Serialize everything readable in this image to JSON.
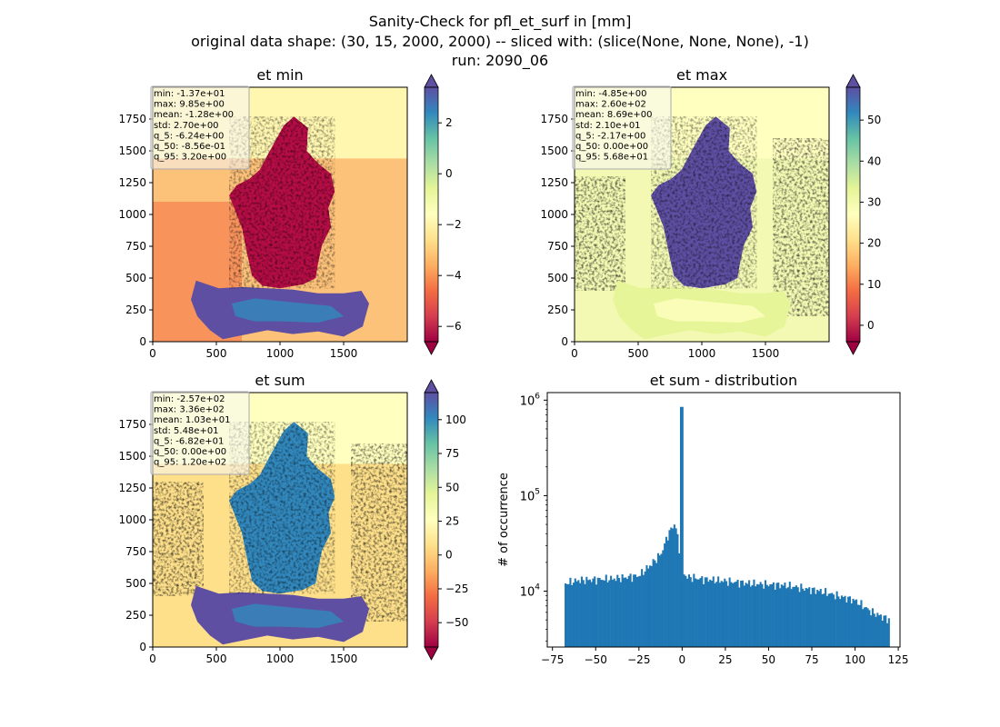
{
  "figure": {
    "suptitle_lines": [
      "Sanity-Check for pfl_et_surf in [mm]",
      "original data shape: (30, 15, 2000, 2000) -- sliced with: (slice(None, None, None), -1)",
      "run: 2090_06"
    ]
  },
  "colors": {
    "spectral": [
      "#9e0142",
      "#d53e4f",
      "#f46d43",
      "#fdae61",
      "#fee08b",
      "#ffffbf",
      "#e6f598",
      "#abdda4",
      "#66c2a5",
      "#3288bd",
      "#5e4fa2"
    ],
    "bar_fill": "#1f77b4"
  },
  "chart_data": [
    {
      "type": "heatmap",
      "title": "et min",
      "xticks": [
        0,
        500,
        1000,
        1500
      ],
      "yticks": [
        0,
        250,
        500,
        750,
        1000,
        1250,
        1500,
        1750
      ],
      "xlim": [
        0,
        2000
      ],
      "ylim": [
        0,
        2000
      ],
      "colorbar": {
        "vmin": -6.6,
        "vmax": 3.4,
        "ticks": [
          -6,
          -4,
          -2,
          0,
          2
        ],
        "extend": "both",
        "colormap": "Spectral"
      },
      "stats": [
        "min: -1.37e+01",
        "max: 9.85e+00",
        "mean: -1.28e+00",
        "std: 2.70e+00",
        "q_5: -6.24e+00",
        "q_50: -8.56e-01",
        "q_95: 3.20e+00"
      ]
    },
    {
      "type": "heatmap",
      "title": "et max",
      "xticks": [
        0,
        500,
        1000,
        1500
      ],
      "yticks": [
        0,
        250,
        500,
        750,
        1000,
        1250,
        1500,
        1750
      ],
      "xlim": [
        0,
        2000
      ],
      "ylim": [
        0,
        2000
      ],
      "colorbar": {
        "vmin": -4.0,
        "vmax": 58.0,
        "ticks": [
          0,
          10,
          20,
          30,
          40,
          50
        ],
        "extend": "both",
        "colormap": "Spectral"
      },
      "stats": [
        "min: -4.85e+00",
        "max: 2.60e+02",
        "mean: 8.69e+00",
        "std: 2.10e+01",
        "q_5: -2.17e+00",
        "q_50: 0.00e+00",
        "q_95: 5.68e+01"
      ]
    },
    {
      "type": "heatmap",
      "title": "et sum",
      "xticks": [
        0,
        500,
        1000,
        1500
      ],
      "yticks": [
        0,
        250,
        500,
        750,
        1000,
        1250,
        1500,
        1750
      ],
      "xlim": [
        0,
        2000
      ],
      "ylim": [
        0,
        2000
      ],
      "colorbar": {
        "vmin": -68,
        "vmax": 120,
        "ticks": [
          -50,
          -25,
          0,
          25,
          50,
          75,
          100
        ],
        "extend": "both",
        "colormap": "Spectral"
      },
      "stats": [
        "min: -2.57e+02",
        "max: 3.36e+02",
        "mean: 1.03e+01",
        "std: 5.48e+01",
        "q_5: -6.82e+01",
        "q_50: 0.00e+00",
        "q_95: 1.20e+02"
      ]
    },
    {
      "type": "bar",
      "title": "et sum - distribution",
      "ylabel": "# of occurrence",
      "yscale": "log",
      "xlim": [
        -78,
        126
      ],
      "ylim": [
        2600,
        1200000
      ],
      "xticks": [
        -75,
        -50,
        -25,
        0,
        25,
        50,
        75,
        100,
        125
      ],
      "ytick_exponents": [
        4,
        5,
        6
      ],
      "bin_range": [
        -68,
        120
      ],
      "bin_count": 200,
      "envelope": {
        "x": [
          -68,
          -60,
          -40,
          -25,
          -18,
          -12,
          -8,
          -4,
          -2,
          -1,
          -0.5,
          0,
          0.5,
          1,
          3,
          5,
          10,
          20,
          40,
          60,
          80,
          100,
          110,
          120
        ],
        "y": [
          12000,
          13000,
          13500,
          14500,
          19000,
          25000,
          40000,
          52000,
          30000,
          20000,
          60000,
          850000,
          17000,
          15000,
          14000,
          14000,
          13500,
          13000,
          12000,
          11500,
          10000,
          8000,
          6000,
          5000
        ]
      }
    }
  ]
}
